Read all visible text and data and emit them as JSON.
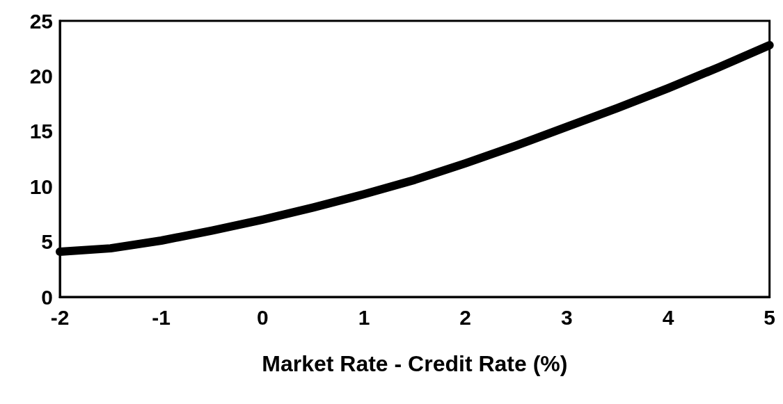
{
  "chart_data": {
    "type": "line",
    "xlabel": "Market Rate - Credit Rate (%)",
    "x": [
      -2,
      -1.5,
      -1,
      -0.5,
      0,
      0.5,
      1,
      1.5,
      2,
      2.5,
      3,
      3.5,
      4,
      4.5,
      5
    ],
    "series": [
      {
        "color": "#000000",
        "values": [
          4.1,
          4.4,
          5.1,
          6.0,
          7.0,
          8.1,
          9.3,
          10.6,
          12.1,
          13.7,
          15.4,
          17.1,
          18.9,
          20.8,
          22.8
        ]
      }
    ],
    "xlim": [
      -2,
      5
    ],
    "xticks": [
      -2,
      -1,
      0,
      1,
      2,
      3,
      4,
      5
    ],
    "ylim": [
      0,
      25
    ],
    "yticks": [
      0,
      5,
      10,
      15,
      20,
      25
    ],
    "grid": false,
    "line_style": "solid"
  }
}
